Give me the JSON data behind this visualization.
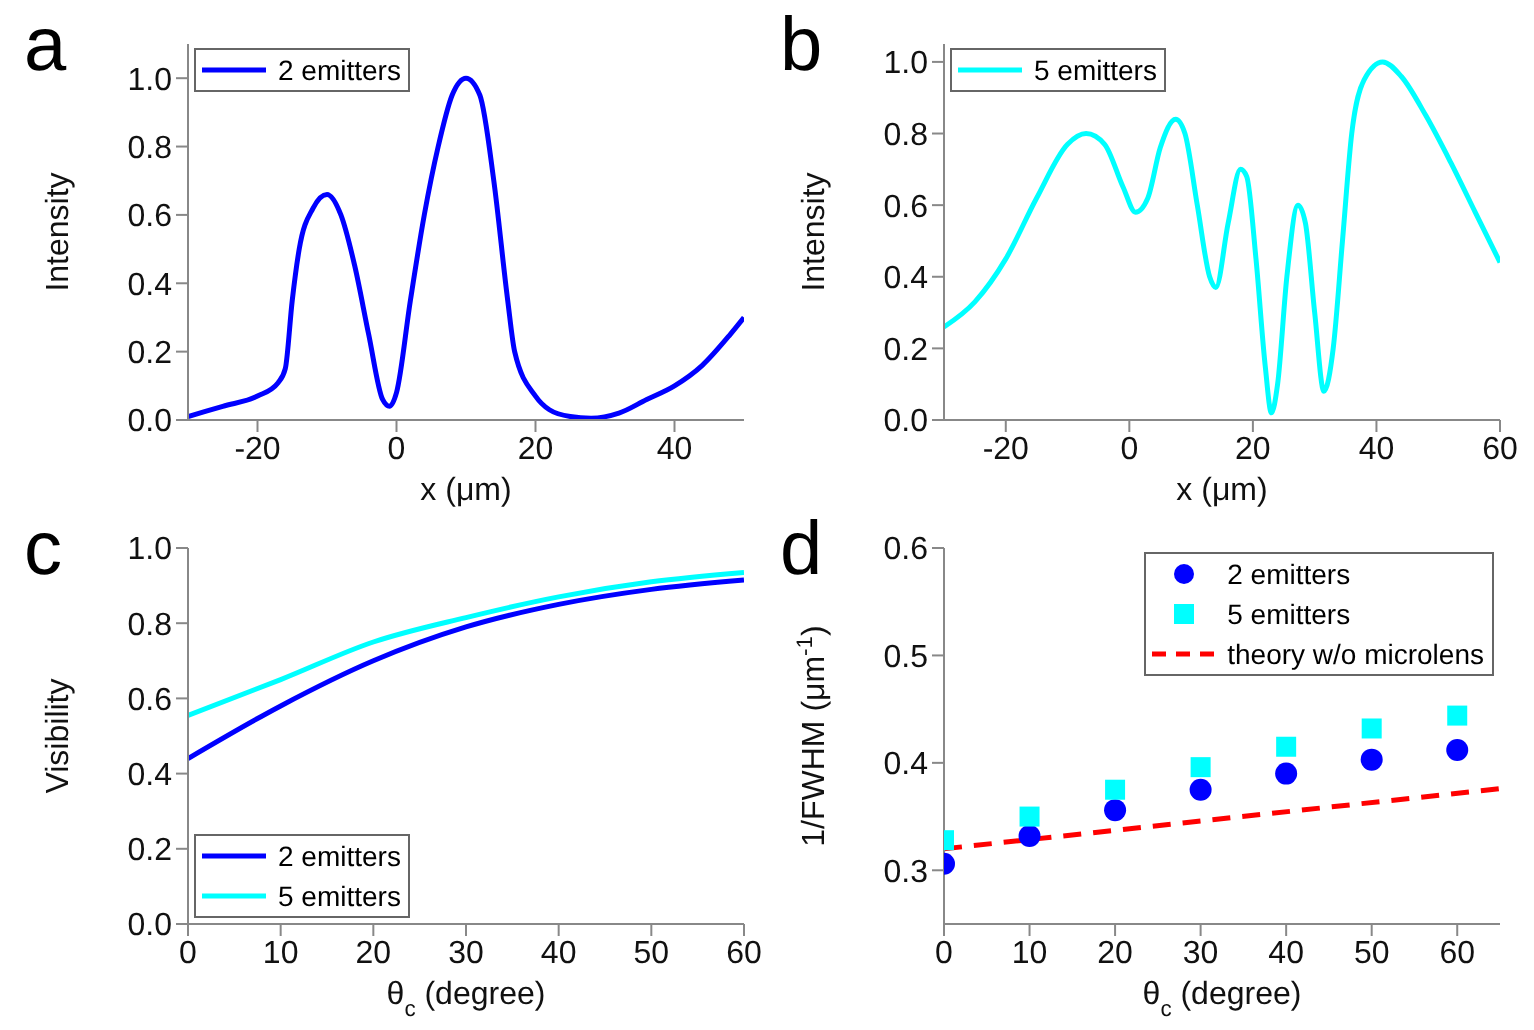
{
  "chart_data": [
    {
      "type": "line",
      "title": "a",
      "xlabel": "x (μm)",
      "ylabel": "Intensity",
      "legend": "top left",
      "marker": "none",
      "line_style": "solid",
      "xlim": [
        -30,
        50
      ],
      "xticks": [
        -20,
        0,
        20,
        40
      ],
      "ylim": [
        0,
        1.1
      ],
      "yticks": [
        {
          "value": 0,
          "label": "0.0"
        },
        {
          "value": 0.2,
          "label": "0.2"
        },
        {
          "value": 0.4,
          "label": "0.4"
        },
        {
          "value": 0.6,
          "label": "0.6"
        },
        {
          "value": 0.8,
          "label": "0.8"
        },
        {
          "value": 1,
          "label": "1.0"
        }
      ],
      "x": [
        -30,
        -25,
        -20,
        -17,
        -16,
        -15,
        -14,
        -12,
        -10,
        -8,
        -6,
        -4,
        -2,
        -1,
        0,
        2,
        4,
        6,
        8,
        10,
        12,
        14,
        16,
        17,
        20,
        22,
        25,
        28,
        32,
        36,
        40,
        44,
        48,
        50
      ],
      "series": [
        {
          "name": "2 emitters",
          "color": "#0000ff",
          "values": [
            0.01,
            0.04,
            0.07,
            0.11,
            0.15,
            0.35,
            0.5,
            0.62,
            0.66,
            0.6,
            0.45,
            0.25,
            0.06,
            0.04,
            0.08,
            0.35,
            0.6,
            0.8,
            0.95,
            1.0,
            0.95,
            0.7,
            0.35,
            0.2,
            0.07,
            0.03,
            0.01,
            0.005,
            0.02,
            0.06,
            0.1,
            0.16,
            0.25,
            0.3
          ]
        }
      ]
    },
    {
      "type": "line",
      "title": "b",
      "xlabel": "x (μm)",
      "ylabel": "Intensity",
      "legend": "top left",
      "marker": "none",
      "line_style": "solid",
      "xlim": [
        -30,
        60
      ],
      "xticks": [
        -20,
        0,
        20,
        40,
        60
      ],
      "ylim": [
        0,
        1.05
      ],
      "yticks": [
        {
          "value": 0,
          "label": "0.0"
        },
        {
          "value": 0.2,
          "label": "0.2"
        },
        {
          "value": 0.4,
          "label": "0.4"
        },
        {
          "value": 0.6,
          "label": "0.6"
        },
        {
          "value": 0.8,
          "label": "0.8"
        },
        {
          "value": 1,
          "label": "1.0"
        }
      ],
      "x": [
        -30,
        -25,
        -20,
        -15,
        -10,
        -7,
        -4,
        -1,
        1,
        3,
        5,
        7.5,
        9,
        11,
        13,
        14,
        16,
        18,
        19,
        20.5,
        22,
        23,
        24,
        25.5,
        27.3,
        28.5,
        30,
        31.5,
        33,
        34.5,
        36,
        38,
        41,
        44,
        48,
        52,
        56,
        60
      ],
      "series": [
        {
          "name": "5 emitters",
          "color": "#00ffff",
          "values": [
            0.26,
            0.33,
            0.45,
            0.62,
            0.77,
            0.8,
            0.77,
            0.65,
            0.58,
            0.62,
            0.76,
            0.84,
            0.8,
            0.6,
            0.4,
            0.37,
            0.55,
            0.7,
            0.68,
            0.45,
            0.15,
            0.02,
            0.1,
            0.4,
            0.6,
            0.55,
            0.3,
            0.08,
            0.2,
            0.5,
            0.8,
            0.95,
            1.0,
            0.96,
            0.85,
            0.72,
            0.58,
            0.44
          ]
        }
      ]
    },
    {
      "type": "line",
      "title": "c",
      "xlabel": "θ$_{c}$ (degree)",
      "ylabel": "Visibility",
      "legend": "bottom left",
      "marker": "none",
      "line_style": "solid",
      "xlim": [
        0,
        60
      ],
      "xticks": [
        0,
        10,
        20,
        30,
        40,
        50,
        60
      ],
      "ylim": [
        0,
        1
      ],
      "yticks": [
        {
          "value": 0,
          "label": "0.0"
        },
        {
          "value": 0.2,
          "label": "0.2"
        },
        {
          "value": 0.4,
          "label": "0.4"
        },
        {
          "value": 0.6,
          "label": "0.6"
        },
        {
          "value": 0.8,
          "label": "0.8"
        },
        {
          "value": 1,
          "label": "1.0"
        }
      ],
      "x": [
        0,
        10,
        20,
        30,
        40,
        50,
        60
      ],
      "series": [
        {
          "name": "2 emitters",
          "color": "#0000ff",
          "values": [
            0.44,
            0.58,
            0.7,
            0.79,
            0.85,
            0.89,
            0.915
          ]
        },
        {
          "name": "5 emitters",
          "color": "#00ffff",
          "values": [
            0.555,
            0.65,
            0.75,
            0.815,
            0.87,
            0.91,
            0.935
          ]
        }
      ]
    },
    {
      "type": "scatter",
      "title": "d",
      "xlabel": "θ$_{c}$ (degree)",
      "ylabel": "1/FWHM (μm$^{-1}$)",
      "legend": "top right",
      "xlim": [
        0,
        65
      ],
      "xticks": [
        0,
        10,
        20,
        30,
        40,
        50,
        60
      ],
      "ylim": [
        0.25,
        0.6
      ],
      "yticks": [
        0.3,
        0.4,
        0.5,
        0.6
      ],
      "x": [
        0,
        10,
        20,
        30,
        40,
        50,
        60
      ],
      "series": [
        {
          "name": "2 emitters",
          "color": "#0000ff",
          "marker": "circle",
          "values": [
            0.306,
            0.332,
            0.356,
            0.375,
            0.39,
            0.403,
            0.412
          ]
        },
        {
          "name": "5 emitters",
          "color": "#00ffff",
          "marker": "square",
          "values": [
            0.328,
            0.35,
            0.375,
            0.396,
            0.415,
            0.432,
            0.444
          ]
        },
        {
          "name": "theory w/o microlens",
          "type": "line",
          "color": "#ff0000",
          "line_style": "dashed",
          "marker": "none",
          "x": [
            0,
            65
          ],
          "values": [
            0.32,
            0.376
          ]
        }
      ]
    }
  ]
}
